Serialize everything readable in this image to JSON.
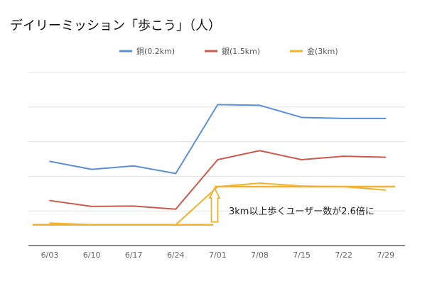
{
  "chart_data": {
    "type": "line",
    "title": "デイリーミッション「歩こう」（人）",
    "xlabel": "",
    "ylabel": "",
    "categories": [
      "6/03",
      "6/10",
      "6/17",
      "6/24",
      "7/01",
      "7/08",
      "7/15",
      "7/22",
      "7/29"
    ],
    "ylim": [
      0,
      5
    ],
    "grid": true,
    "legend_position": "top",
    "series": [
      {
        "name": "銅(0.2km)",
        "color": "#5b8fd9",
        "values": [
          2.43,
          2.2,
          2.3,
          2.08,
          4.07,
          4.05,
          3.7,
          3.67,
          3.67
        ]
      },
      {
        "name": "銀(1.5km)",
        "color": "#cc5a4e",
        "values": [
          1.3,
          1.13,
          1.14,
          1.05,
          2.48,
          2.74,
          2.48,
          2.58,
          2.55
        ]
      },
      {
        "name": "金(3km)",
        "color": "#f2b230",
        "values": [
          0.65,
          0.6,
          0.6,
          0.6,
          1.7,
          1.8,
          1.72,
          1.7,
          1.6
        ]
      }
    ],
    "annotations": {
      "text": "3km以上歩くユーザー数が2.6倍に",
      "arrow_color": "#f2b230",
      "baseline_level": 0.6,
      "raised_level": 1.7
    }
  }
}
